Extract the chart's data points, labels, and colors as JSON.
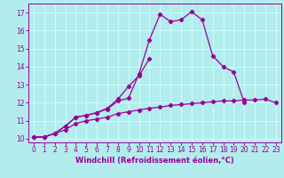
{
  "xlabel": "Windchill (Refroidissement éolien,°C)",
  "background_color": "#b3ecec",
  "grid_color": "#ccffff",
  "line_color": "#990099",
  "xlim": [
    -0.5,
    23.5
  ],
  "ylim": [
    9.8,
    17.5
  ],
  "xticks": [
    0,
    1,
    2,
    3,
    4,
    5,
    6,
    7,
    8,
    9,
    10,
    11,
    12,
    13,
    14,
    15,
    16,
    17,
    18,
    19,
    20,
    21,
    22,
    23
  ],
  "yticks": [
    10,
    11,
    12,
    13,
    14,
    15,
    16,
    17
  ],
  "curve1_x": [
    0,
    1,
    2,
    3,
    4,
    5,
    6,
    7,
    8,
    9,
    10,
    11,
    12,
    13,
    14,
    15,
    16,
    17,
    18,
    19,
    20
  ],
  "curve1_y": [
    10.1,
    10.1,
    10.3,
    10.7,
    11.2,
    11.3,
    11.45,
    11.65,
    12.1,
    12.25,
    13.6,
    15.5,
    16.9,
    16.5,
    16.6,
    17.05,
    16.6,
    14.6,
    14.0,
    13.7,
    12.0
  ],
  "curve2_x": [
    0,
    1,
    2,
    3,
    4,
    5,
    6,
    7,
    8,
    9,
    10,
    11
  ],
  "curve2_y": [
    10.1,
    10.1,
    10.3,
    10.7,
    11.2,
    11.3,
    11.45,
    11.7,
    12.2,
    12.9,
    13.5,
    14.45
  ],
  "curve3_x": [
    0,
    1,
    2,
    3,
    4,
    5,
    6,
    7,
    8,
    9,
    10,
    11,
    12,
    13,
    14,
    15,
    16,
    17,
    18,
    19,
    20,
    21,
    22,
    23
  ],
  "curve3_y": [
    10.1,
    10.1,
    10.3,
    10.5,
    10.85,
    11.0,
    11.1,
    11.2,
    11.4,
    11.5,
    11.6,
    11.7,
    11.75,
    11.85,
    11.9,
    11.95,
    12.0,
    12.05,
    12.1,
    12.1,
    12.15,
    12.15,
    12.2,
    12.0
  ],
  "marker_size": 2.2,
  "line_width": 0.9,
  "tick_fontsize": 5.5,
  "xlabel_fontsize": 6.0
}
